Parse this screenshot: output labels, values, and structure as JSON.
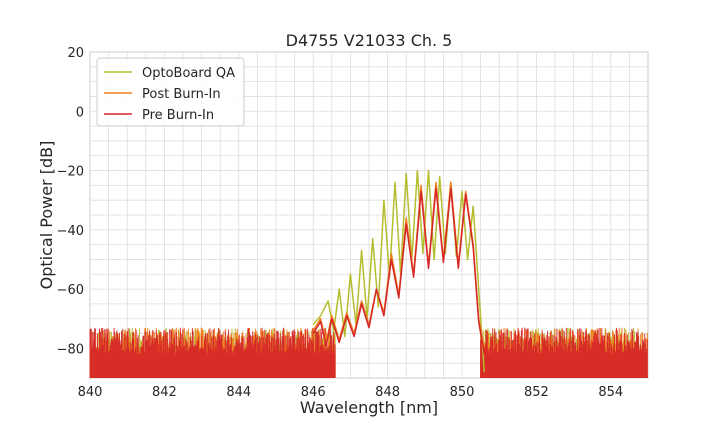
{
  "chart_data": {
    "type": "line",
    "title": "D4755 V21033 Ch. 5",
    "xlabel": "Wavelength [nm]",
    "ylabel": "Optical Power [dB]",
    "xlim": [
      840,
      855
    ],
    "ylim": [
      -90,
      20
    ],
    "xticks": [
      "840",
      "842",
      "844",
      "846",
      "848",
      "850",
      "852",
      "854"
    ],
    "xtick_values": [
      840,
      842,
      844,
      846,
      848,
      850,
      852,
      854
    ],
    "yticks": [
      "20",
      "0",
      "−20",
      "−40",
      "−60",
      "−80"
    ],
    "ytick_values": [
      20,
      0,
      -20,
      -40,
      -60,
      -80
    ],
    "grid": true,
    "legend_position": "top-left",
    "noise_floor": {
      "range": [
        -90,
        -73
      ],
      "x_ranges": [
        [
          840,
          846.6
        ],
        [
          850.5,
          855
        ]
      ]
    },
    "series": [
      {
        "name": "OptoBoard QA",
        "color": "#b5bd2e",
        "x": [
          846.0,
          846.2,
          846.4,
          846.55,
          846.7,
          846.85,
          847.0,
          847.15,
          847.3,
          847.45,
          847.6,
          847.75,
          847.9,
          848.05,
          848.2,
          848.35,
          848.5,
          848.65,
          848.8,
          848.95,
          849.1,
          849.25,
          849.4,
          849.55,
          849.7,
          849.85,
          850.0,
          850.15,
          850.3,
          850.45,
          850.6
        ],
        "y": [
          -72,
          -69,
          -64,
          -74,
          -60,
          -76,
          -55,
          -72,
          -47,
          -70,
          -43,
          -66,
          -30,
          -56,
          -24,
          -55,
          -21,
          -50,
          -20,
          -48,
          -20,
          -50,
          -22,
          -48,
          -24,
          -49,
          -27,
          -50,
          -32,
          -60,
          -88
        ]
      },
      {
        "name": "Post Burn-In",
        "color": "#f07f1f",
        "x": [
          846.0,
          846.2,
          846.35,
          846.5,
          846.7,
          846.9,
          847.1,
          847.3,
          847.5,
          847.7,
          847.9,
          848.1,
          848.3,
          848.5,
          848.7,
          848.9,
          849.1,
          849.3,
          849.5,
          849.7,
          849.9,
          850.1,
          850.3,
          850.45,
          850.6
        ],
        "y": [
          -74,
          -70,
          -78,
          -69,
          -77,
          -68,
          -75,
          -64,
          -72,
          -60,
          -68,
          -48,
          -62,
          -36,
          -55,
          -25,
          -52,
          -24,
          -50,
          -24,
          -52,
          -27,
          -45,
          -70,
          -80
        ]
      },
      {
        "name": "Pre Burn-In",
        "color": "#d62728",
        "x": [
          846.0,
          846.2,
          846.35,
          846.5,
          846.7,
          846.9,
          847.1,
          847.3,
          847.5,
          847.7,
          847.9,
          848.1,
          848.3,
          848.5,
          848.7,
          848.9,
          849.1,
          849.3,
          849.5,
          849.7,
          849.9,
          850.1,
          850.3,
          850.45,
          850.6
        ],
        "y": [
          -75,
          -71,
          -79,
          -70,
          -78,
          -69,
          -76,
          -65,
          -73,
          -60,
          -69,
          -50,
          -63,
          -38,
          -56,
          -27,
          -53,
          -26,
          -51,
          -26,
          -53,
          -28,
          -46,
          -71,
          -82
        ]
      }
    ]
  }
}
